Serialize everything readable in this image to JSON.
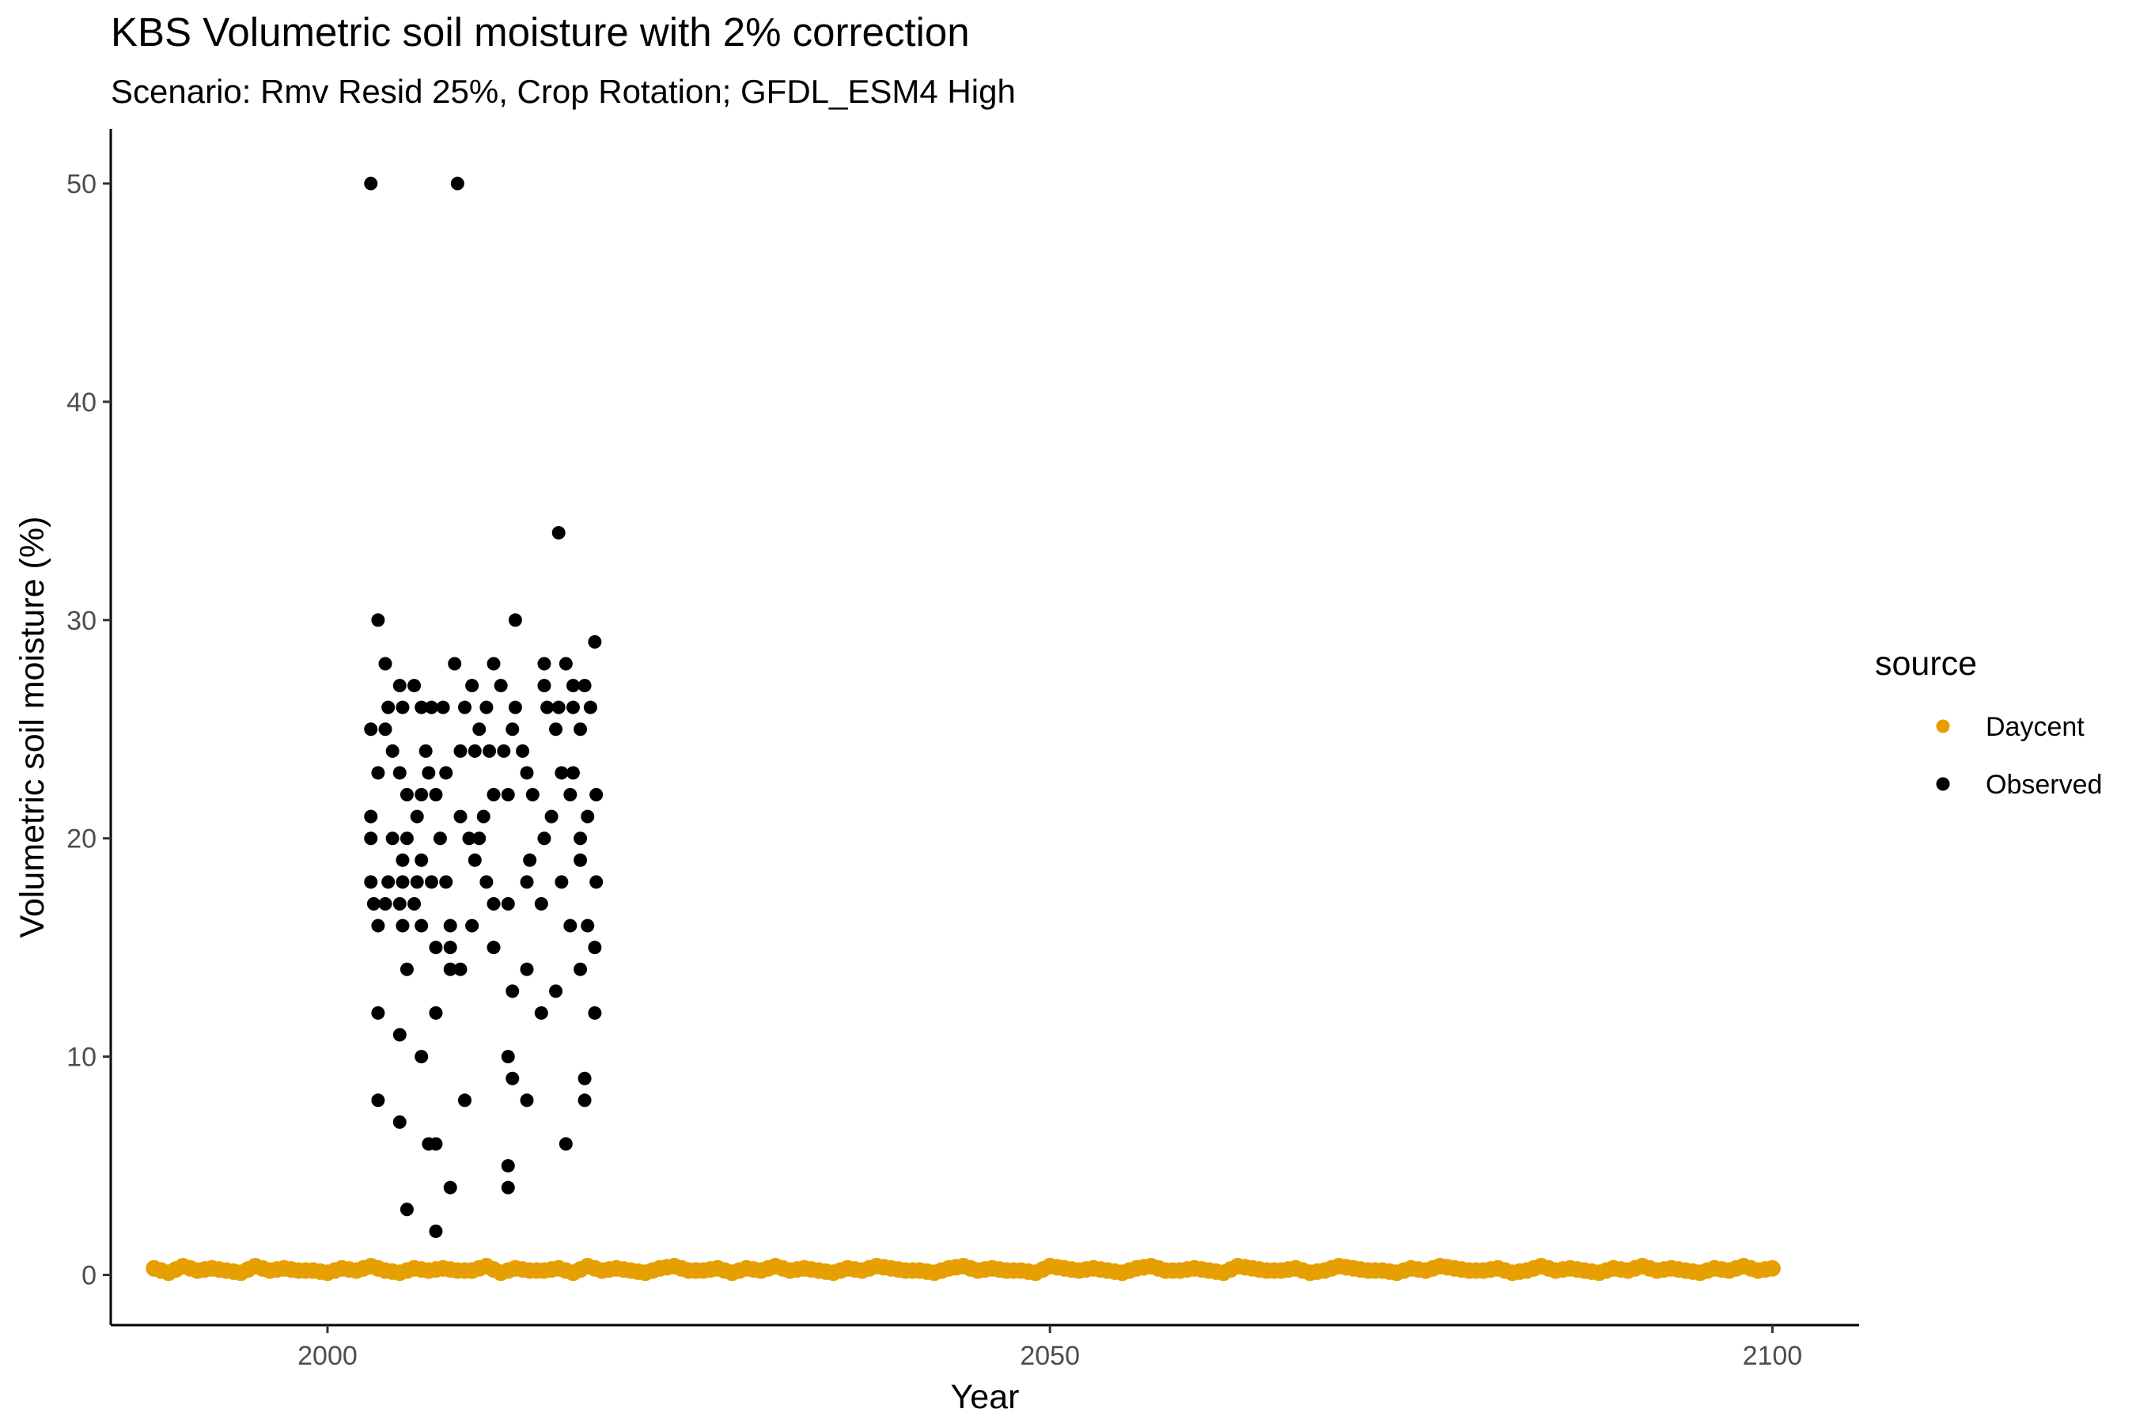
{
  "chart_data": {
    "type": "scatter",
    "title": "KBS Volumetric soil moisture with 2% correction",
    "subtitle": "Scenario: Rmv Resid 25%, Crop Rotation; GFDL_ESM4 High",
    "xlabel": "Year",
    "ylabel": "Volumetric soil moisture (%)",
    "xlim": [
      1985,
      2106
    ],
    "ylim": [
      -2.3,
      52.5
    ],
    "x_ticks": [
      2000,
      2050,
      2100
    ],
    "y_ticks": [
      0,
      10,
      20,
      30,
      40,
      50
    ],
    "grid": false,
    "legend": {
      "title": "source",
      "position": "right",
      "entries": [
        "Daycent",
        "Observed"
      ]
    },
    "series": [
      {
        "name": "Daycent",
        "color": "#E69F00",
        "x_start": 1988,
        "x_end": 2100,
        "approx_value": 0.2,
        "y": [
          0.3,
          0.1,
          0.4,
          0.2,
          0.3,
          0.2,
          0.1,
          0.4,
          0.2,
          0.3,
          0.2,
          0.2,
          0.1,
          0.3,
          0.2,
          0.4,
          0.2,
          0.1,
          0.3,
          0.2,
          0.3,
          0.2,
          0.2,
          0.4,
          0.1,
          0.3,
          0.2,
          0.2,
          0.3,
          0.1,
          0.4,
          0.2,
          0.3,
          0.2,
          0.1,
          0.3,
          0.4,
          0.2,
          0.2,
          0.3,
          0.1,
          0.3,
          0.2,
          0.4,
          0.2,
          0.3,
          0.2,
          0.1,
          0.3,
          0.2,
          0.4,
          0.3,
          0.2,
          0.2,
          0.1,
          0.3,
          0.4,
          0.2,
          0.3,
          0.2,
          0.2,
          0.1,
          0.4,
          0.3,
          0.2,
          0.3,
          0.2,
          0.1,
          0.3,
          0.4,
          0.2,
          0.2,
          0.3,
          0.2,
          0.1,
          0.4,
          0.3,
          0.2,
          0.2,
          0.3,
          0.1,
          0.2,
          0.4,
          0.3,
          0.2,
          0.2,
          0.1,
          0.3,
          0.2,
          0.4,
          0.3,
          0.2,
          0.2,
          0.3,
          0.1,
          0.2,
          0.4,
          0.2,
          0.3,
          0.2,
          0.1,
          0.3,
          0.2,
          0.4,
          0.2,
          0.3,
          0.2,
          0.1,
          0.3,
          0.2,
          0.4,
          0.2,
          0.3
        ]
      },
      {
        "name": "Observed",
        "color": "#000000",
        "points": [
          [
            2003,
            50
          ],
          [
            2009,
            50
          ],
          [
            2016,
            34
          ],
          [
            2003.5,
            30
          ],
          [
            2013,
            30
          ],
          [
            2018.5,
            29
          ],
          [
            2004,
            28
          ],
          [
            2008.8,
            28
          ],
          [
            2011.5,
            28
          ],
          [
            2015,
            28
          ],
          [
            2016.5,
            28
          ],
          [
            2005,
            27
          ],
          [
            2006,
            27
          ],
          [
            2010,
            27
          ],
          [
            2012,
            27
          ],
          [
            2015,
            27
          ],
          [
            2017,
            27
          ],
          [
            2017.8,
            27
          ],
          [
            2004.2,
            26
          ],
          [
            2005.2,
            26
          ],
          [
            2006.5,
            26
          ],
          [
            2007.2,
            26
          ],
          [
            2008,
            26
          ],
          [
            2009.5,
            26
          ],
          [
            2011,
            26
          ],
          [
            2013,
            26
          ],
          [
            2015.2,
            26
          ],
          [
            2016,
            26
          ],
          [
            2017,
            26
          ],
          [
            2018.2,
            26
          ],
          [
            2003,
            25
          ],
          [
            2004,
            25
          ],
          [
            2010.5,
            25
          ],
          [
            2012.8,
            25
          ],
          [
            2015.8,
            25
          ],
          [
            2017.5,
            25
          ],
          [
            2004.5,
            24
          ],
          [
            2006.8,
            24
          ],
          [
            2009.2,
            24
          ],
          [
            2010.2,
            24
          ],
          [
            2011.2,
            24
          ],
          [
            2012.2,
            24
          ],
          [
            2013.5,
            24
          ],
          [
            2003.5,
            23
          ],
          [
            2005,
            23
          ],
          [
            2007,
            23
          ],
          [
            2008.2,
            23
          ],
          [
            2013.8,
            23
          ],
          [
            2016.2,
            23
          ],
          [
            2017,
            23
          ],
          [
            2005.5,
            22
          ],
          [
            2006.5,
            22
          ],
          [
            2007.5,
            22
          ],
          [
            2011.5,
            22
          ],
          [
            2012.5,
            22
          ],
          [
            2014.2,
            22
          ],
          [
            2016.8,
            22
          ],
          [
            2018.6,
            22
          ],
          [
            2003,
            21
          ],
          [
            2006.2,
            21
          ],
          [
            2009.2,
            21
          ],
          [
            2010.8,
            21
          ],
          [
            2015.5,
            21
          ],
          [
            2018,
            21
          ],
          [
            2003,
            20
          ],
          [
            2004.5,
            20
          ],
          [
            2005.5,
            20
          ],
          [
            2007.8,
            20
          ],
          [
            2009.8,
            20
          ],
          [
            2010.5,
            20
          ],
          [
            2015,
            20
          ],
          [
            2017.5,
            20
          ],
          [
            2005.2,
            19
          ],
          [
            2006.5,
            19
          ],
          [
            2010.2,
            19
          ],
          [
            2014,
            19
          ],
          [
            2017.5,
            19
          ],
          [
            2003,
            18
          ],
          [
            2004.2,
            18
          ],
          [
            2005.2,
            18
          ],
          [
            2006.2,
            18
          ],
          [
            2007.2,
            18
          ],
          [
            2008.2,
            18
          ],
          [
            2011,
            18
          ],
          [
            2013.8,
            18
          ],
          [
            2016.2,
            18
          ],
          [
            2018.6,
            18
          ],
          [
            2003.2,
            17
          ],
          [
            2004,
            17
          ],
          [
            2005,
            17
          ],
          [
            2006,
            17
          ],
          [
            2011.5,
            17
          ],
          [
            2012.5,
            17
          ],
          [
            2014.8,
            17
          ],
          [
            2003.5,
            16
          ],
          [
            2005.2,
            16
          ],
          [
            2006.5,
            16
          ],
          [
            2008.5,
            16
          ],
          [
            2010,
            16
          ],
          [
            2016.8,
            16
          ],
          [
            2018,
            16
          ],
          [
            2007.5,
            15
          ],
          [
            2008.5,
            15
          ],
          [
            2011.5,
            15
          ],
          [
            2018.5,
            15
          ],
          [
            2005.5,
            14
          ],
          [
            2008.5,
            14
          ],
          [
            2009.2,
            14
          ],
          [
            2013.8,
            14
          ],
          [
            2017.5,
            14
          ],
          [
            2012.8,
            13
          ],
          [
            2015.8,
            13
          ],
          [
            2003.5,
            12
          ],
          [
            2007.5,
            12
          ],
          [
            2014.8,
            12
          ],
          [
            2018.5,
            12
          ],
          [
            2005,
            11
          ],
          [
            2006.5,
            10
          ],
          [
            2012.5,
            10
          ],
          [
            2012.8,
            9
          ],
          [
            2017.8,
            9
          ],
          [
            2003.5,
            8
          ],
          [
            2009.5,
            8
          ],
          [
            2013.8,
            8
          ],
          [
            2017.8,
            8
          ],
          [
            2005,
            7
          ],
          [
            2007,
            6
          ],
          [
            2007.5,
            6
          ],
          [
            2016.5,
            6
          ],
          [
            2012.5,
            5
          ],
          [
            2008.5,
            4
          ],
          [
            2012.5,
            4
          ],
          [
            2005.5,
            3
          ],
          [
            2007.5,
            2
          ]
        ]
      }
    ]
  }
}
